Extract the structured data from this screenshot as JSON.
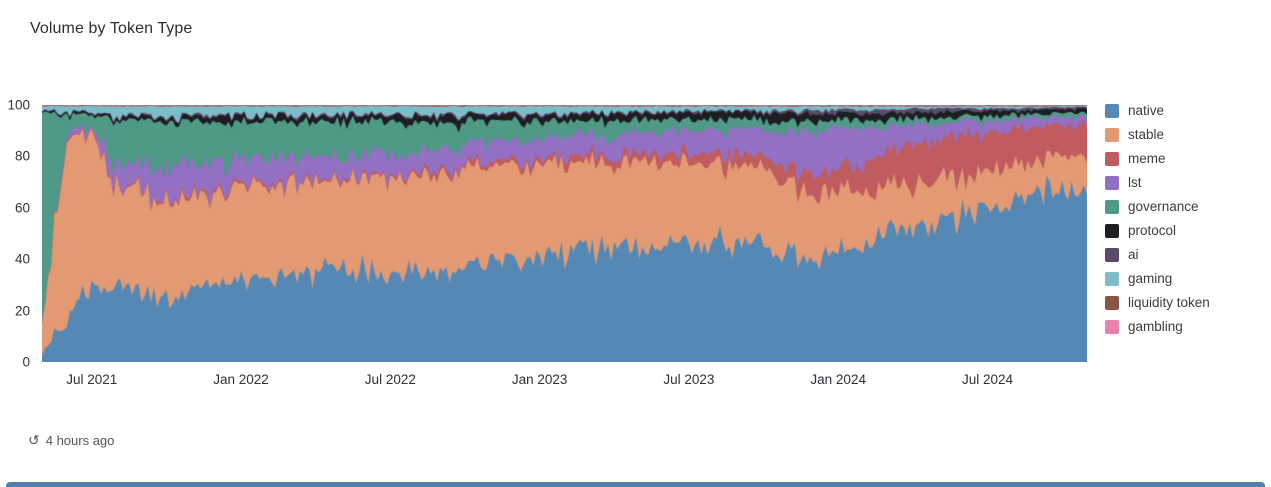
{
  "chart": {
    "title": "Volume by Token Type"
  },
  "footer": {
    "updated_text": "4 hours ago",
    "icon": "history-clock"
  },
  "colors": {
    "page_edge_strip": "#4f81ae",
    "axis_text": "#303036",
    "title_text": "#2e2e33"
  },
  "chart_data": {
    "type": "area",
    "stacked": true,
    "normalized_percent": true,
    "title": "Volume by Token Type",
    "xlabel": "",
    "ylabel": "",
    "ylim": [
      0,
      100
    ],
    "grid": false,
    "legend_position": "right",
    "yticks": [
      0,
      20,
      40,
      60,
      80,
      100
    ],
    "xticks": [
      {
        "label": "Jul 2021",
        "index": 2
      },
      {
        "label": "Jan 2022",
        "index": 8
      },
      {
        "label": "Jul 2022",
        "index": 14
      },
      {
        "label": "Jan 2023",
        "index": 20
      },
      {
        "label": "Jul 2023",
        "index": 26
      },
      {
        "label": "Jan 2024",
        "index": 32
      },
      {
        "label": "Jul 2024",
        "index": 38
      }
    ],
    "x": [
      "2021-05",
      "2021-06",
      "2021-07",
      "2021-08",
      "2021-09",
      "2021-10",
      "2021-11",
      "2021-12",
      "2022-01",
      "2022-02",
      "2022-03",
      "2022-04",
      "2022-05",
      "2022-06",
      "2022-07",
      "2022-08",
      "2022-09",
      "2022-10",
      "2022-11",
      "2022-12",
      "2023-01",
      "2023-02",
      "2023-03",
      "2023-04",
      "2023-05",
      "2023-06",
      "2023-07",
      "2023-08",
      "2023-09",
      "2023-10",
      "2023-11",
      "2023-12",
      "2024-01",
      "2024-02",
      "2024-03",
      "2024-04",
      "2024-05",
      "2024-06",
      "2024-07",
      "2024-08",
      "2024-09",
      "2024-10",
      "2024-11"
    ],
    "series": [
      {
        "name": "native",
        "color": "#5588b4",
        "values": [
          3,
          18,
          30,
          29,
          25,
          25,
          28,
          30,
          33,
          32,
          35,
          35,
          38,
          36,
          35,
          36,
          35,
          36,
          40,
          40,
          42,
          42,
          44,
          45,
          46,
          46,
          47,
          47,
          46,
          45,
          42,
          40,
          42,
          45,
          50,
          52,
          55,
          58,
          62,
          65,
          68,
          70,
          66
        ]
      },
      {
        "name": "stable",
        "color": "#e39a72",
        "values": [
          10,
          70,
          59,
          39,
          41,
          37,
          36,
          35,
          35,
          36,
          35,
          36,
          34,
          36,
          38,
          38,
          38,
          38,
          35,
          36,
          35,
          35,
          34,
          33,
          33,
          33,
          32,
          31,
          31,
          30,
          28,
          26,
          24,
          22,
          18,
          17,
          16,
          15,
          14,
          13,
          12,
          12,
          14
        ]
      },
      {
        "name": "meme",
        "color": "#c05b60",
        "values": [
          0.2,
          0.5,
          0.5,
          0.6,
          0.6,
          1,
          1,
          1,
          1,
          1,
          1,
          1,
          1,
          1,
          1,
          1,
          1.5,
          1.5,
          2,
          2,
          2,
          2.5,
          2.5,
          3,
          3,
          3.5,
          4,
          4,
          4,
          5,
          6,
          8,
          9,
          10,
          14,
          16,
          16,
          16,
          14,
          13,
          12,
          11,
          13
        ]
      },
      {
        "name": "lst",
        "color": "#9370c4",
        "values": [
          0.3,
          1.5,
          2,
          8,
          10,
          12,
          12,
          11,
          10,
          10,
          9,
          9,
          8,
          8,
          8,
          8,
          8,
          8,
          8,
          8,
          8,
          8,
          8,
          8,
          8,
          8,
          8,
          9,
          10,
          11,
          14,
          16,
          16,
          14,
          10,
          8,
          6,
          5,
          4,
          3.5,
          3,
          2.5,
          2.5
        ]
      },
      {
        "name": "governance",
        "color": "#4f9a86",
        "values": [
          84,
          6,
          5,
          17,
          17,
          18,
          16.5,
          16,
          14.5,
          14.5,
          13.7,
          12.7,
          12.8,
          12.8,
          11.8,
          10.8,
          10.7,
          9.7,
          8.7,
          7.7,
          6.7,
          6.2,
          5.7,
          5.2,
          4.7,
          4.2,
          3.7,
          3.7,
          3.7,
          3.7,
          3.7,
          3.4,
          3,
          3,
          2.5,
          2.2,
          2,
          1.7,
          1.6,
          1.6,
          1.6,
          1.4,
          1.4
        ]
      },
      {
        "name": "protocol",
        "color": "#1d1d22",
        "values": [
          0.5,
          0.8,
          0.8,
          1.2,
          1.2,
          1.6,
          2,
          2.2,
          2.2,
          2.2,
          2.2,
          2.2,
          2.2,
          2.2,
          2.2,
          2.2,
          2.6,
          2.6,
          2.6,
          2.6,
          2.6,
          2.6,
          2.6,
          2.6,
          2.6,
          2.6,
          2.6,
          2.6,
          2.6,
          2.6,
          3,
          3,
          2.6,
          2.6,
          2.2,
          2.2,
          2.2,
          2.1,
          2,
          1.6,
          1.6,
          1.6,
          1.6
        ]
      },
      {
        "name": "ai",
        "color": "#5a4a68",
        "values": [
          0.2,
          0.3,
          0.3,
          0.5,
          0.5,
          0.5,
          0.6,
          0.6,
          0.6,
          0.6,
          0.6,
          0.6,
          0.6,
          0.6,
          0.6,
          0.6,
          0.6,
          0.6,
          0.6,
          0.6,
          0.6,
          0.6,
          0.6,
          0.6,
          0.6,
          0.6,
          0.6,
          0.6,
          0.6,
          0.6,
          1,
          1.5,
          1.5,
          1.5,
          1.5,
          1.5,
          1.5,
          1,
          1,
          1,
          0.8,
          0.7,
          0.7
        ]
      },
      {
        "name": "gaming",
        "color": "#7fbcca",
        "values": [
          1.5,
          2.5,
          2,
          4,
          4,
          4,
          3.5,
          3.5,
          3.3,
          3.3,
          3.2,
          3.2,
          3.1,
          3.1,
          3.1,
          3.1,
          3.3,
          3.3,
          2.8,
          2.8,
          2.8,
          2.8,
          2.3,
          2.3,
          1.8,
          1.8,
          1.8,
          1.8,
          1.8,
          1.8,
          1.8,
          1.6,
          1.4,
          1.4,
          1.3,
          0.6,
          0.8,
          0.7,
          0.9,
          0.8,
          0.5,
          0.4,
          0.4
        ]
      },
      {
        "name": "liquidity token",
        "color": "#8a5644",
        "values": [
          0.2,
          0.2,
          0.2,
          0.3,
          0.3,
          0.3,
          0.3,
          0.3,
          0.3,
          0.3,
          0.3,
          0.3,
          0.3,
          0.3,
          0.3,
          0.3,
          0.3,
          0.3,
          0.3,
          0.3,
          0.3,
          0.3,
          0.3,
          0.3,
          0.3,
          0.3,
          0.3,
          0.3,
          0.3,
          0.3,
          0.3,
          0.3,
          0.3,
          0.3,
          0.3,
          0.3,
          0.3,
          0.3,
          0.3,
          0.3,
          0.3,
          0.2,
          0.2
        ]
      },
      {
        "name": "gambling",
        "color": "#e583ae",
        "values": [
          0.1,
          0.2,
          0.2,
          0.2,
          0.2,
          0.2,
          0.2,
          0.2,
          0.2,
          0.2,
          0.2,
          0.2,
          0.2,
          0.2,
          0.2,
          0.2,
          0.2,
          0.2,
          0.2,
          0.2,
          0.2,
          0.2,
          0.2,
          0.2,
          0.2,
          0.2,
          0.2,
          0.2,
          0.2,
          0.2,
          0.2,
          0.2,
          0.2,
          0.2,
          0.2,
          0.2,
          0.2,
          0.2,
          0.2,
          0.2,
          0.2,
          0.2,
          0.2
        ]
      }
    ]
  }
}
